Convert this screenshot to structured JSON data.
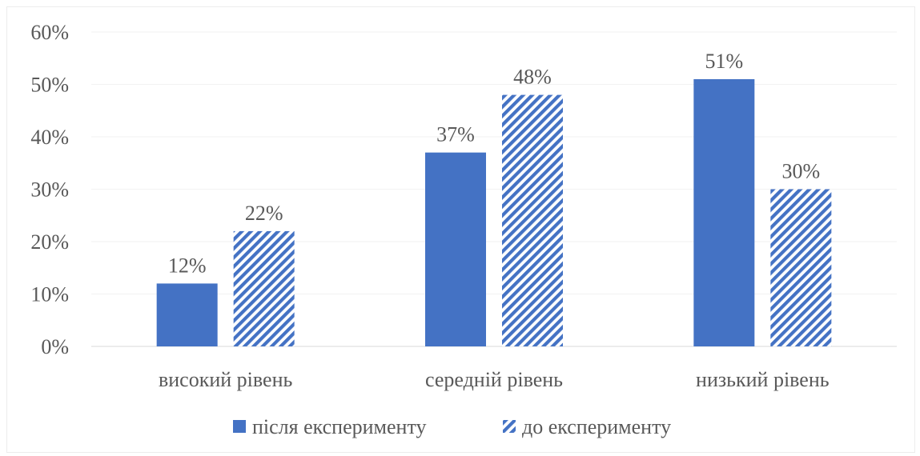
{
  "chart_data": {
    "type": "bar",
    "categories": [
      "високий рівень",
      "середній рівень",
      "низький рівень"
    ],
    "series": [
      {
        "name": "після експерименту",
        "values": [
          12,
          37,
          51
        ],
        "labels": [
          "12%",
          "37%",
          "51%"
        ],
        "fill": "solid",
        "color": "#4472C4"
      },
      {
        "name": "до експерименту",
        "values": [
          22,
          48,
          30
        ],
        "labels": [
          "22%",
          "48%",
          "30%"
        ],
        "fill": "diagonal-stripes",
        "color": "#4472C4"
      }
    ],
    "yticks": [
      "0%",
      "10%",
      "20%",
      "30%",
      "40%",
      "50%",
      "60%"
    ],
    "ylim": [
      0,
      60
    ],
    "grid": true,
    "legend": "bottom",
    "text_color": "#595959",
    "grid_color": "#f2f2f2"
  }
}
